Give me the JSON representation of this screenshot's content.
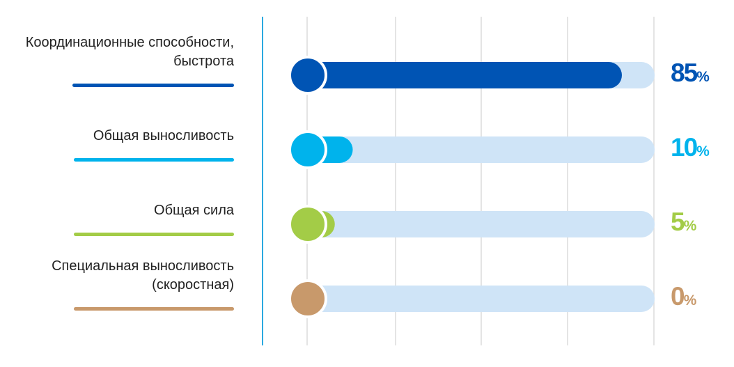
{
  "chart_data": {
    "type": "bar",
    "orientation": "horizontal",
    "categories": [
      "Координационные способности,\nбыстрота",
      "Общая выносливость",
      "Общая сила",
      "Специальная выносливость\n(скоростная)"
    ],
    "values": [
      85,
      10,
      5,
      0
    ],
    "value_labels": [
      "85",
      "10",
      "5",
      "0"
    ],
    "unit": "%",
    "xlim": [
      0,
      100
    ],
    "grid": true,
    "colors": [
      "#0054b4",
      "#00b3ec",
      "#a3cc47",
      "#c8996b"
    ],
    "track_color": "#cfe4f7",
    "axis_color": "#2aa9e0",
    "grid_color": "#dcdcdc"
  }
}
